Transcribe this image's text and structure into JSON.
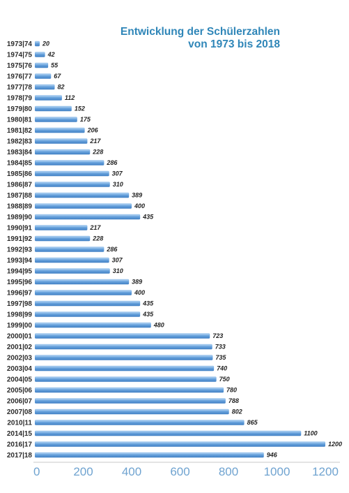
{
  "chart_data": {
    "type": "bar",
    "orientation": "horizontal",
    "title_lines": [
      "Entwicklung der Schülerzahlen",
      "von 1973 bis 2018"
    ],
    "categories": [
      "1973|74",
      "1974|75",
      "1975|76",
      "1976|77",
      "1977|78",
      "1978|79",
      "1979|80",
      "1980|81",
      "1981|82",
      "1982|83",
      "1983|84",
      "1984|85",
      "1985|86",
      "1986|87",
      "1987|88",
      "1988|89",
      "1989|90",
      "1990|91",
      "1991|92",
      "1992|93",
      "1993|94",
      "1994|95",
      "1995|96",
      "1996|97",
      "1997|98",
      "1998|99",
      "1999|00",
      "2000|01",
      "2001|02",
      "2002|03",
      "2003|04",
      "2004|05",
      "2005|06",
      "2006|07",
      "2007|08",
      "2010|11",
      "2014|15",
      "2016|17",
      "2017|18"
    ],
    "values": [
      20,
      42,
      55,
      67,
      82,
      112,
      152,
      175,
      206,
      217,
      228,
      286,
      307,
      310,
      389,
      400,
      435,
      217,
      228,
      286,
      307,
      310,
      389,
      400,
      435,
      435,
      480,
      723,
      733,
      735,
      740,
      750,
      780,
      788,
      802,
      865,
      1100,
      1200,
      946
    ],
    "x_ticks": [
      0,
      200,
      400,
      600,
      800,
      1000,
      1200
    ],
    "xlim": [
      0,
      1200
    ],
    "grid": false,
    "legend": "none",
    "colors": {
      "bar": "#5a96d3",
      "bar_highlight": "#9cc4ec",
      "title": "#2f86b8",
      "axis_tick": "#6fa3d0"
    }
  }
}
